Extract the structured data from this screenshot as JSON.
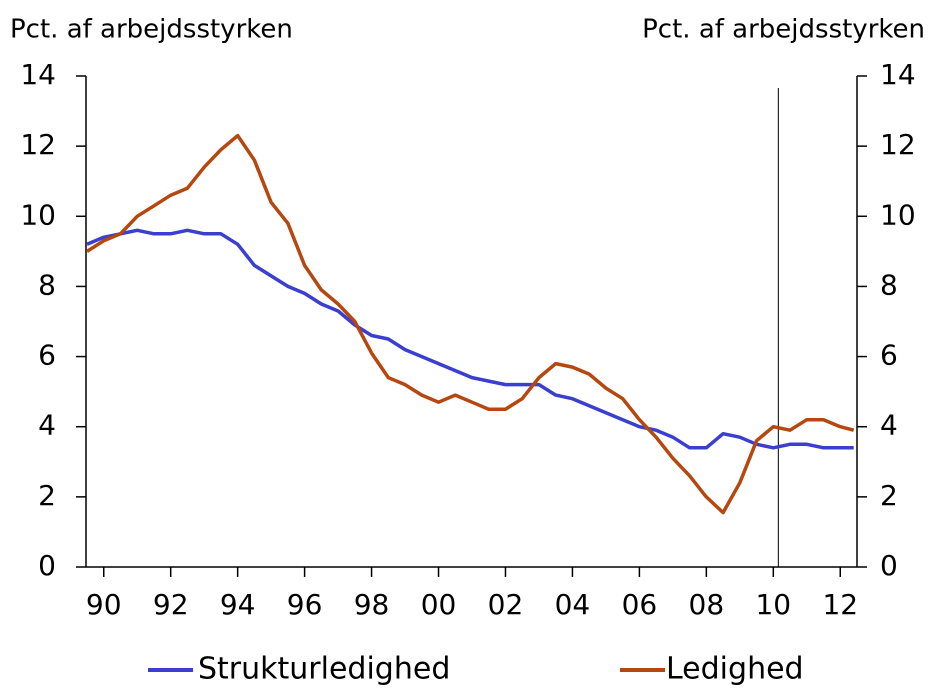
{
  "chart_data": {
    "type": "line",
    "ylabel": "Pct. af arbejdsstyrken",
    "y2label": "Pct. af arbejdsstyrken",
    "x": [
      1990.0,
      1990.5,
      1991.0,
      1991.5,
      1992.0,
      1992.5,
      1993.0,
      1993.5,
      1994.0,
      1994.5,
      1995.0,
      1995.5,
      1996.0,
      1996.5,
      1997.0,
      1997.5,
      1998.0,
      1998.5,
      1999.0,
      1999.5,
      2000.0,
      2000.5,
      2001.0,
      2001.5,
      2002.0,
      2002.5,
      2003.0,
      2003.5,
      2004.0,
      2004.5,
      2005.0,
      2005.5,
      2006.0,
      2006.5,
      2007.0,
      2007.5,
      2008.0,
      2008.5,
      2009.0,
      2009.5,
      2010.0,
      2010.5,
      2011.0,
      2011.5,
      2012.0,
      2012.5,
      2012.9
    ],
    "series": [
      {
        "name": "Strukturledighed",
        "color": "#3a3fcf",
        "values": [
          9.2,
          9.4,
          9.5,
          9.6,
          9.5,
          9.5,
          9.6,
          9.5,
          9.5,
          9.2,
          8.6,
          8.3,
          8.0,
          7.8,
          7.5,
          7.3,
          6.9,
          6.6,
          6.5,
          6.2,
          6.0,
          5.8,
          5.6,
          5.4,
          5.3,
          5.2,
          5.2,
          5.2,
          4.9,
          4.8,
          4.6,
          4.4,
          4.2,
          4.0,
          3.9,
          3.7,
          3.4,
          3.4,
          3.8,
          3.7,
          3.5,
          3.4,
          3.5,
          3.5,
          3.4,
          3.4,
          3.4
        ]
      },
      {
        "name": "Ledighed",
        "color": "#b5470f",
        "values": [
          9.0,
          9.3,
          9.5,
          10.0,
          10.3,
          10.6,
          10.8,
          11.4,
          11.9,
          12.3,
          11.6,
          10.4,
          9.8,
          8.6,
          7.9,
          7.5,
          7.0,
          6.1,
          5.4,
          5.2,
          4.9,
          4.7,
          4.9,
          4.7,
          4.5,
          4.5,
          4.8,
          5.4,
          5.8,
          5.7,
          5.5,
          5.1,
          4.8,
          4.2,
          3.7,
          3.1,
          2.6,
          2.0,
          1.55,
          2.4,
          3.6,
          4.0,
          3.9,
          4.2,
          4.2,
          4.0,
          3.9
        ]
      }
    ],
    "vertical_line": 2010.65,
    "xlim": [
      1990,
      2013
    ],
    "xticks": [
      {
        "value": 1990.5,
        "label": "90"
      },
      {
        "value": 1992.5,
        "label": "92"
      },
      {
        "value": 1994.5,
        "label": "94"
      },
      {
        "value": 1996.5,
        "label": "96"
      },
      {
        "value": 1998.5,
        "label": "98"
      },
      {
        "value": 2000.5,
        "label": "00"
      },
      {
        "value": 2002.5,
        "label": "02"
      },
      {
        "value": 2004.5,
        "label": "04"
      },
      {
        "value": 2006.5,
        "label": "06"
      },
      {
        "value": 2008.5,
        "label": "08"
      },
      {
        "value": 2010.5,
        "label": "10"
      },
      {
        "value": 2012.5,
        "label": "12"
      }
    ],
    "ylim": [
      0,
      14
    ],
    "yticks": [
      0,
      2,
      4,
      6,
      8,
      10,
      12,
      14
    ],
    "y2lim": [
      0,
      14
    ],
    "y2ticks": [
      0,
      2,
      4,
      6,
      8,
      10,
      12,
      14
    ],
    "grid": false
  }
}
